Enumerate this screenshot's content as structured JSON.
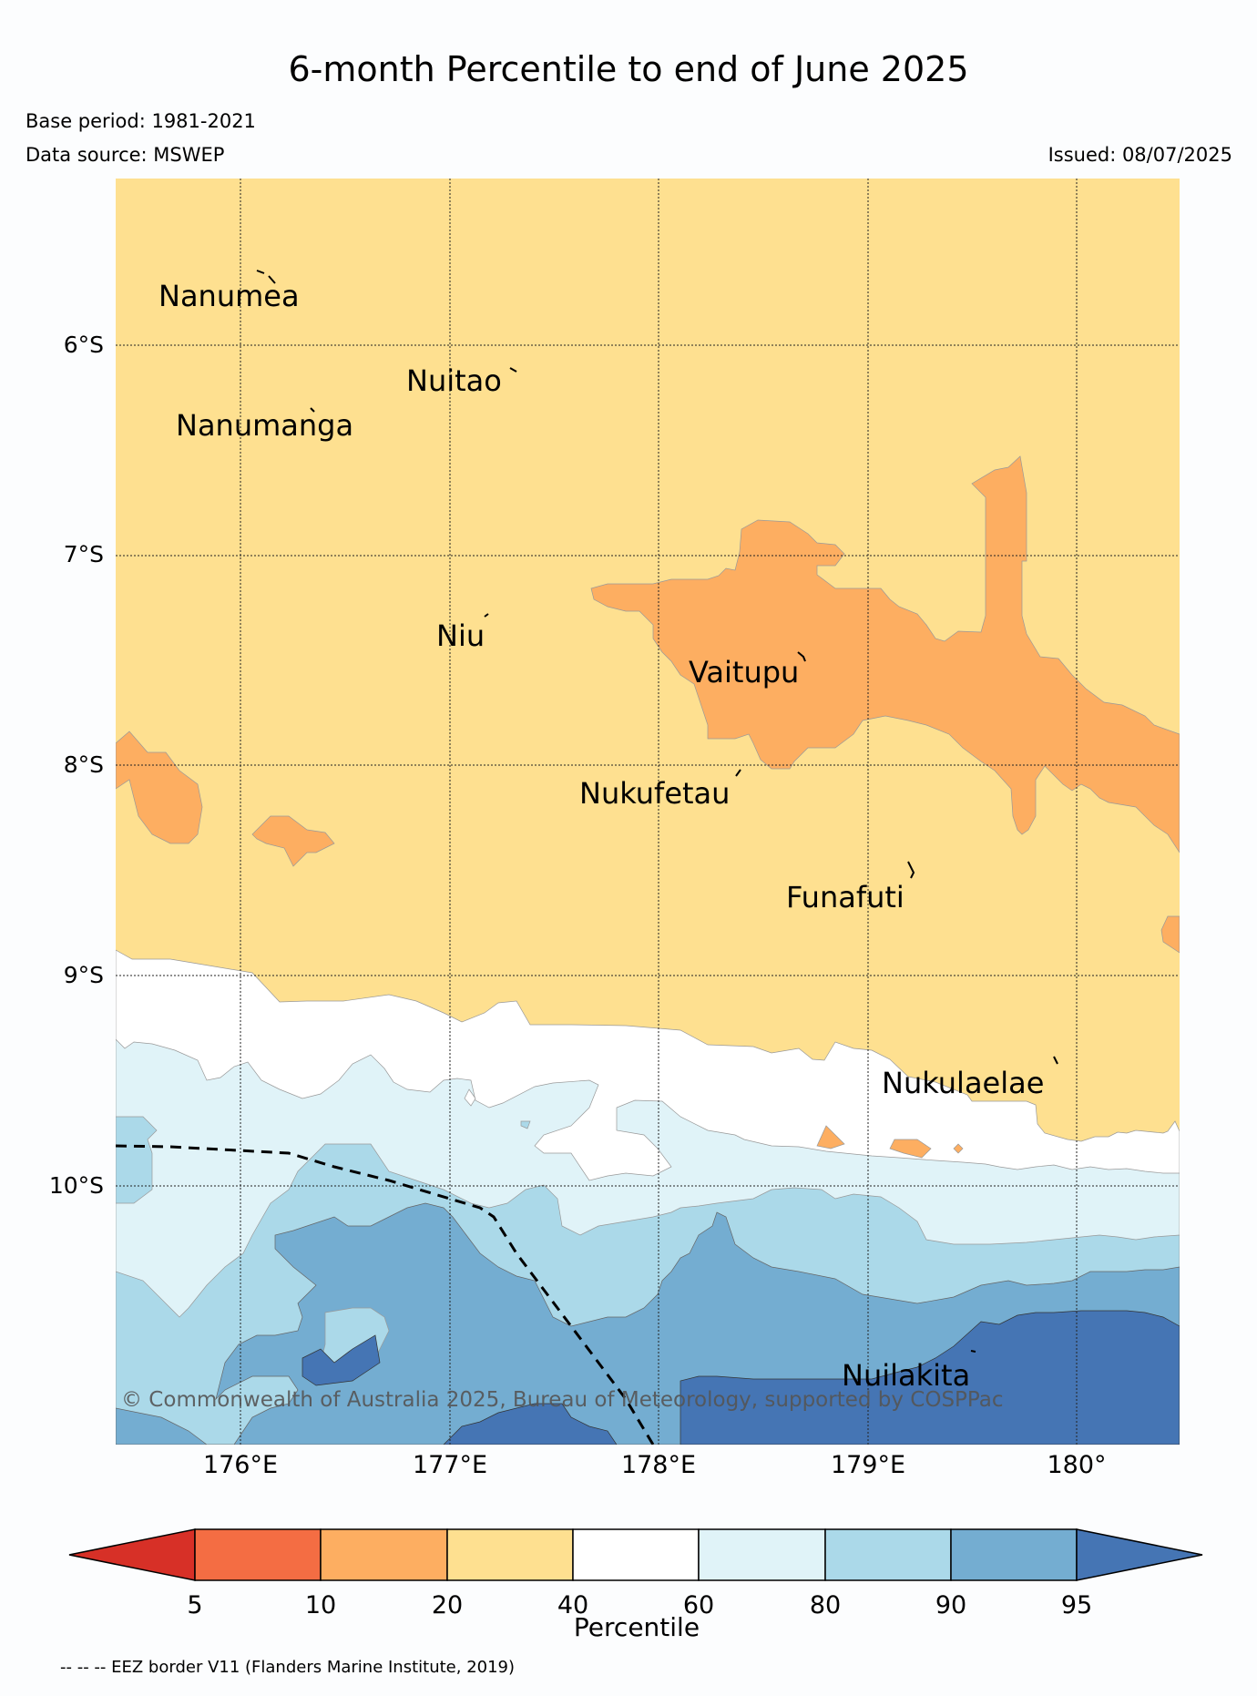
{
  "header": {
    "title": "6-month Percentile to end of June 2025",
    "base_period": "Base period: 1981-2021",
    "data_source": "Data source: MSWEP",
    "issued": "Issued: 08/07/2025"
  },
  "map": {
    "latitude_labels": [
      "6°S",
      "7°S",
      "8°S",
      "9°S",
      "10°S"
    ],
    "longitude_labels": [
      "176°E",
      "177°E",
      "178°E",
      "179°E",
      "180°"
    ],
    "places": {
      "nanumea": "Nanumea",
      "nuitao": "Nuitao",
      "nanumanga": "Nanumanga",
      "niu": "Niu",
      "vaitupu": "Vaitupu",
      "nukufetau": "Nukufetau",
      "funafuti": "Funafuti",
      "nukulaelae": "Nukulaelae",
      "nuilakita": "Nuilakita"
    },
    "copyright": "© Commonwealth of Australia 2025, Bureau of Meteorology, supported by COSPPac",
    "colors": {
      "p5": "#d73027",
      "p5_10": "#f46d43",
      "p10_20": "#fdae61",
      "p20_40": "#fee090",
      "p40_60": "#ffffff",
      "p60_80": "#e0f3f8",
      "p80_90": "#abd9e9",
      "p90_95": "#74add1",
      "p95": "#4575b4"
    }
  },
  "colorbar": {
    "label": "Percentile",
    "ticks": [
      "5",
      "10",
      "20",
      "40",
      "60",
      "80",
      "90",
      "95"
    ]
  },
  "footer": {
    "eez_note": "-- -- -- EEZ border V11 (Flanders Marine Institute, 2019)"
  }
}
